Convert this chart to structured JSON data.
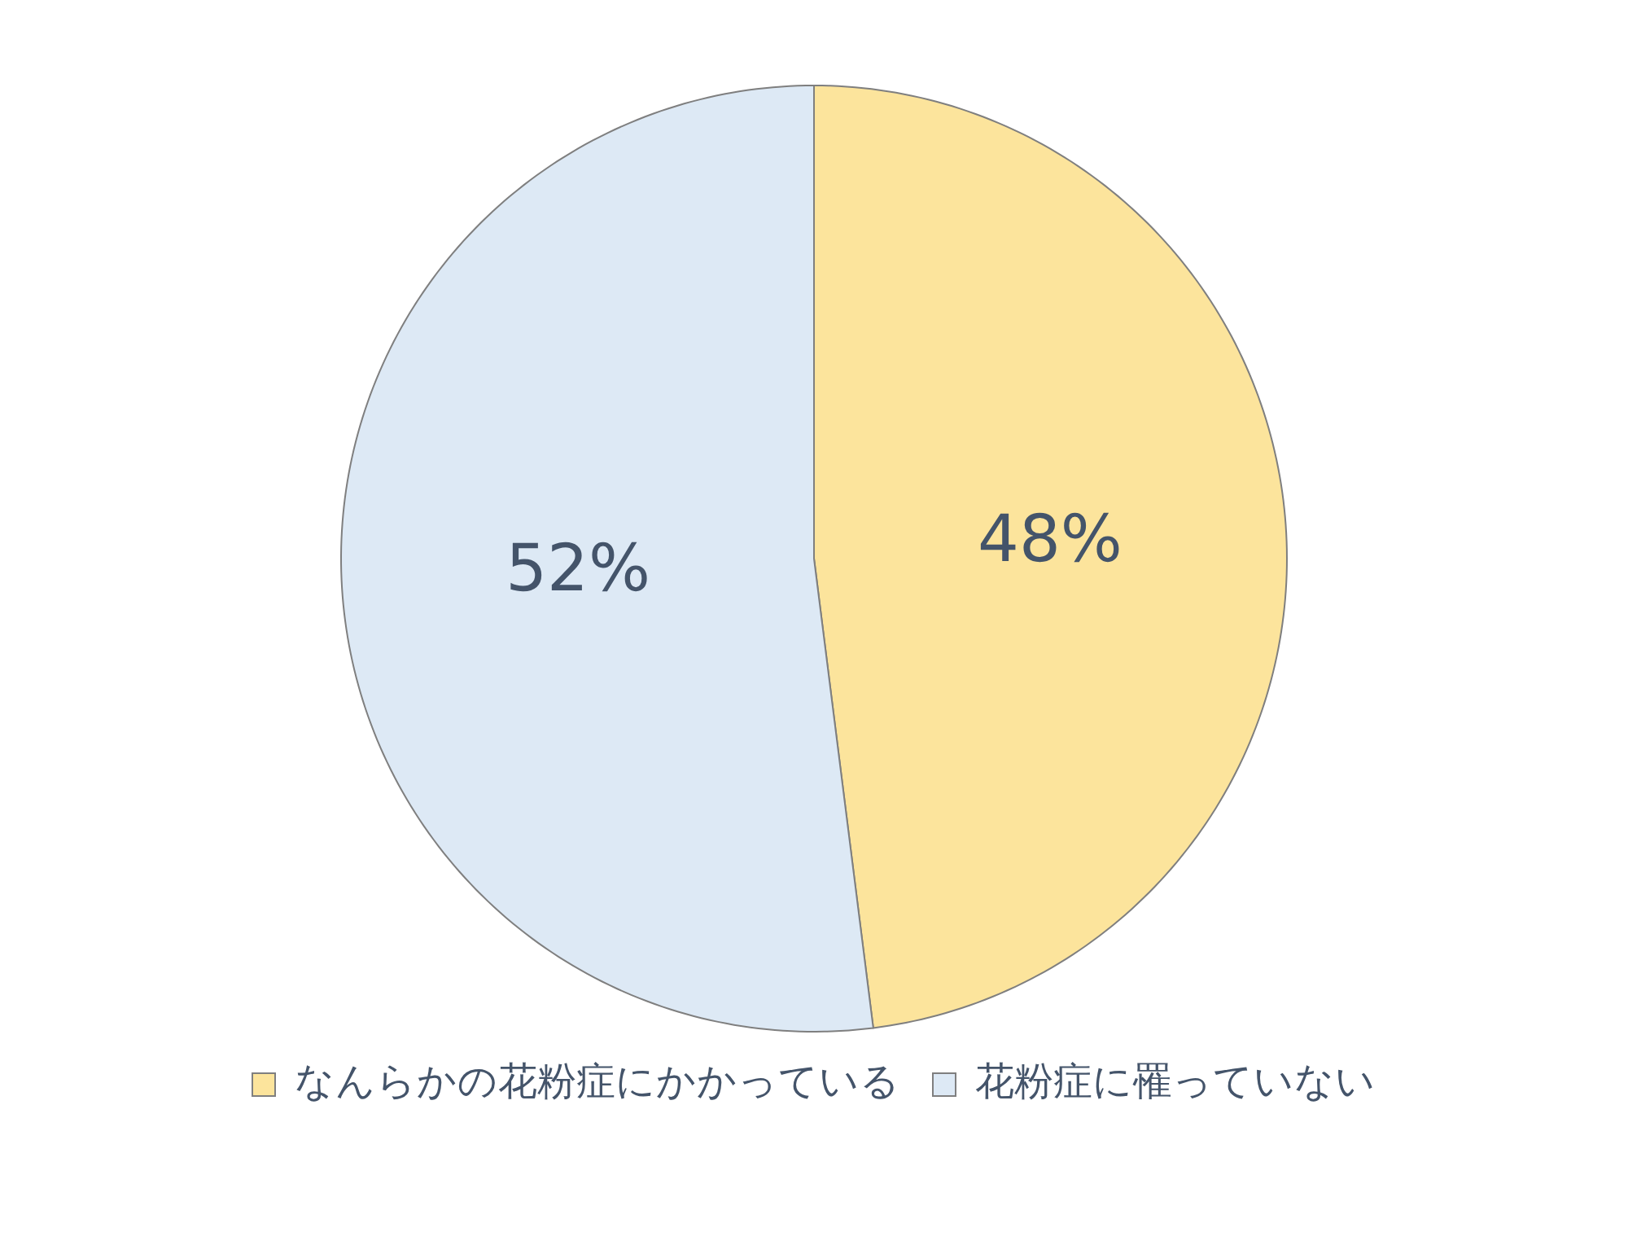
{
  "chart_data": {
    "type": "pie",
    "categories": [
      "なんらかの花粉症にかかっている",
      "花粉症に罹っていない"
    ],
    "values": [
      48,
      52
    ],
    "colors": [
      "#fce49c",
      "#dde9f5"
    ],
    "value_labels": [
      "48%",
      "52%"
    ],
    "legend": "bottom"
  }
}
